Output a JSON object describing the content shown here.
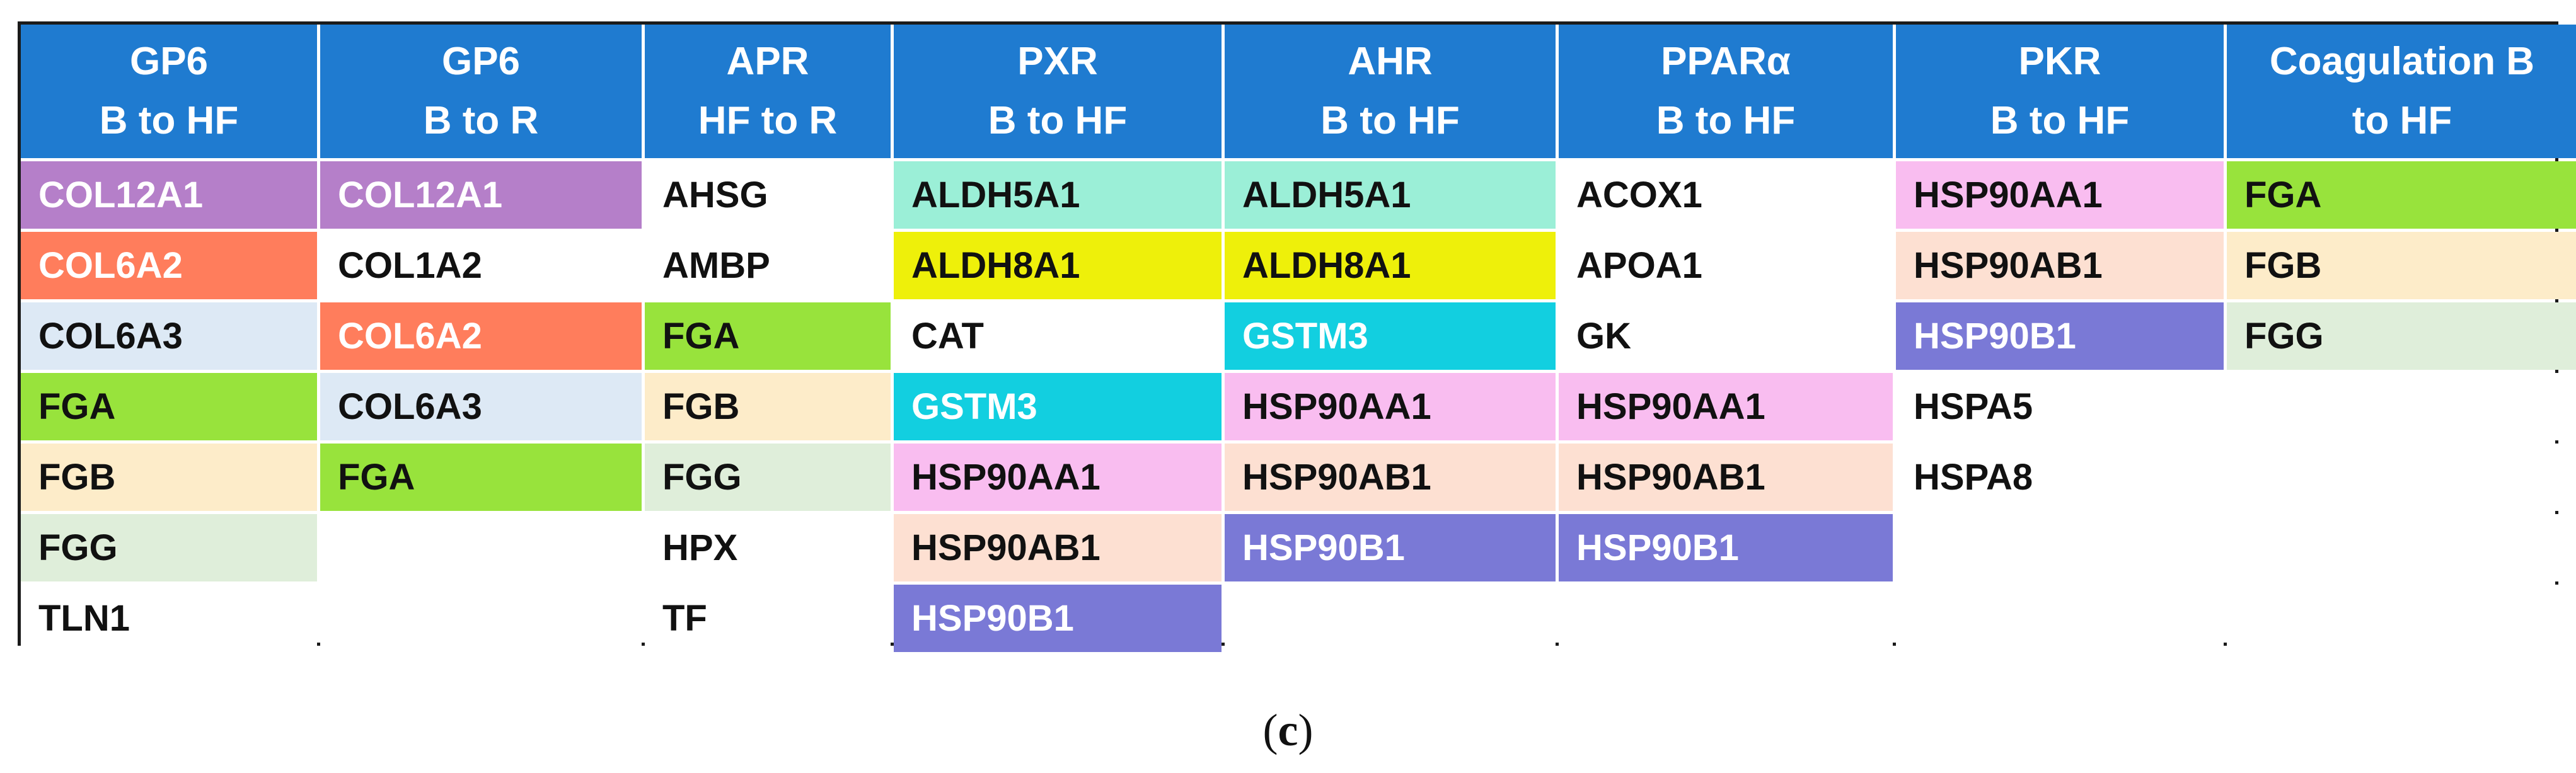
{
  "colors": {
    "header_bg": "#1f7bd0",
    "header_text": "#ffffff",
    "purple": "#b57fc9",
    "coral": "#ff7d5c",
    "light_blue": "#dde9f5",
    "green": "#98e33c",
    "cream": "#fdecc9",
    "mint_light": "#dfeeda",
    "mint": "#9befd7",
    "yellow": "#eef00a",
    "cyan": "#12cfe0",
    "pink": "#f9bdf0",
    "peach": "#fde0d2",
    "periwinkle": "#7a79d6"
  },
  "headers": [
    {
      "line1": "GP6",
      "line2": "B to HF"
    },
    {
      "line1": "GP6",
      "line2": "B to R"
    },
    {
      "line1": "APR",
      "line2": "HF to R"
    },
    {
      "line1": "PXR",
      "line2": "B to HF"
    },
    {
      "line1": "AHR",
      "line2": "B to HF"
    },
    {
      "line1": "PPARα",
      "line2": "B to HF"
    },
    {
      "line1": "PKR",
      "line2": "B to HF"
    },
    {
      "line1": "Coagulation B",
      "line2": "to HF"
    }
  ],
  "columns": [
    [
      {
        "text": "COL12A1",
        "bg": "#b57fc9",
        "fg": "#ffffff"
      },
      {
        "text": "COL6A2",
        "bg": "#ff7d5c",
        "fg": "#ffffff"
      },
      {
        "text": "COL6A3",
        "bg": "#dde9f5",
        "fg": "#111111"
      },
      {
        "text": "FGA",
        "bg": "#98e33c",
        "fg": "#111111"
      },
      {
        "text": "FGB",
        "bg": "#fdecc9",
        "fg": "#111111"
      },
      {
        "text": "FGG",
        "bg": "#dfeeda",
        "fg": "#111111"
      },
      {
        "text": "TLN1",
        "bg": "#ffffff",
        "fg": "#111111"
      }
    ],
    [
      {
        "text": "COL12A1",
        "bg": "#b57fc9",
        "fg": "#ffffff"
      },
      {
        "text": "COL1A2",
        "bg": "#ffffff",
        "fg": "#111111"
      },
      {
        "text": "COL6A2",
        "bg": "#ff7d5c",
        "fg": "#ffffff"
      },
      {
        "text": "COL6A3",
        "bg": "#dde9f5",
        "fg": "#111111"
      },
      {
        "text": "FGA",
        "bg": "#98e33c",
        "fg": "#111111"
      },
      {
        "text": "",
        "bg": "#ffffff",
        "fg": "#111111"
      },
      {
        "text": "",
        "bg": "#ffffff",
        "fg": "#111111"
      }
    ],
    [
      {
        "text": "AHSG",
        "bg": "#ffffff",
        "fg": "#111111"
      },
      {
        "text": "AMBP",
        "bg": "#ffffff",
        "fg": "#111111"
      },
      {
        "text": "FGA",
        "bg": "#98e33c",
        "fg": "#111111"
      },
      {
        "text": "FGB",
        "bg": "#fdecc9",
        "fg": "#111111"
      },
      {
        "text": "FGG",
        "bg": "#dfeeda",
        "fg": "#111111"
      },
      {
        "text": "HPX",
        "bg": "#ffffff",
        "fg": "#111111"
      },
      {
        "text": "TF",
        "bg": "#ffffff",
        "fg": "#111111"
      }
    ],
    [
      {
        "text": "ALDH5A1",
        "bg": "#9befd7",
        "fg": "#111111"
      },
      {
        "text": "ALDH8A1",
        "bg": "#eef00a",
        "fg": "#111111"
      },
      {
        "text": "CAT",
        "bg": "#ffffff",
        "fg": "#111111"
      },
      {
        "text": "GSTM3",
        "bg": "#12cfe0",
        "fg": "#ffffff"
      },
      {
        "text": "HSP90AA1",
        "bg": "#f9bdf0",
        "fg": "#111111"
      },
      {
        "text": "HSP90AB1",
        "bg": "#fde0d2",
        "fg": "#111111"
      },
      {
        "text": "HSP90B1",
        "bg": "#7a79d6",
        "fg": "#ffffff"
      }
    ],
    [
      {
        "text": "ALDH5A1",
        "bg": "#9befd7",
        "fg": "#111111"
      },
      {
        "text": "ALDH8A1",
        "bg": "#eef00a",
        "fg": "#111111"
      },
      {
        "text": "GSTM3",
        "bg": "#12cfe0",
        "fg": "#ffffff"
      },
      {
        "text": "HSP90AA1",
        "bg": "#f9bdf0",
        "fg": "#111111"
      },
      {
        "text": "HSP90AB1",
        "bg": "#fde0d2",
        "fg": "#111111"
      },
      {
        "text": "HSP90B1",
        "bg": "#7a79d6",
        "fg": "#ffffff"
      },
      {
        "text": "",
        "bg": "#ffffff",
        "fg": "#111111"
      }
    ],
    [
      {
        "text": "ACOX1",
        "bg": "#ffffff",
        "fg": "#111111"
      },
      {
        "text": "APOA1",
        "bg": "#ffffff",
        "fg": "#111111"
      },
      {
        "text": "GK",
        "bg": "#ffffff",
        "fg": "#111111"
      },
      {
        "text": "HSP90AA1",
        "bg": "#f9bdf0",
        "fg": "#111111"
      },
      {
        "text": "HSP90AB1",
        "bg": "#fde0d2",
        "fg": "#111111"
      },
      {
        "text": "HSP90B1",
        "bg": "#7a79d6",
        "fg": "#ffffff"
      },
      {
        "text": "",
        "bg": "#ffffff",
        "fg": "#111111"
      }
    ],
    [
      {
        "text": "HSP90AA1",
        "bg": "#f9bdf0",
        "fg": "#111111"
      },
      {
        "text": "HSP90AB1",
        "bg": "#fde0d2",
        "fg": "#111111"
      },
      {
        "text": "HSP90B1",
        "bg": "#7a79d6",
        "fg": "#ffffff"
      },
      {
        "text": "HSPA5",
        "bg": "#ffffff",
        "fg": "#111111"
      },
      {
        "text": "HSPA8",
        "bg": "#ffffff",
        "fg": "#111111"
      },
      {
        "text": "",
        "bg": "#ffffff",
        "fg": "#111111"
      },
      {
        "text": "",
        "bg": "#ffffff",
        "fg": "#111111"
      }
    ],
    [
      {
        "text": "FGA",
        "bg": "#98e33c",
        "fg": "#111111"
      },
      {
        "text": "FGB",
        "bg": "#fdecc9",
        "fg": "#111111"
      },
      {
        "text": "FGG",
        "bg": "#dfeeda",
        "fg": "#111111"
      },
      {
        "text": "",
        "bg": "#ffffff",
        "fg": "#111111"
      },
      {
        "text": "",
        "bg": "#ffffff",
        "fg": "#111111"
      },
      {
        "text": "",
        "bg": "#ffffff",
        "fg": "#111111"
      },
      {
        "text": "",
        "bg": "#ffffff",
        "fg": "#111111"
      }
    ]
  ],
  "caption": {
    "open": "(",
    "letter": "c",
    "close": ")"
  }
}
